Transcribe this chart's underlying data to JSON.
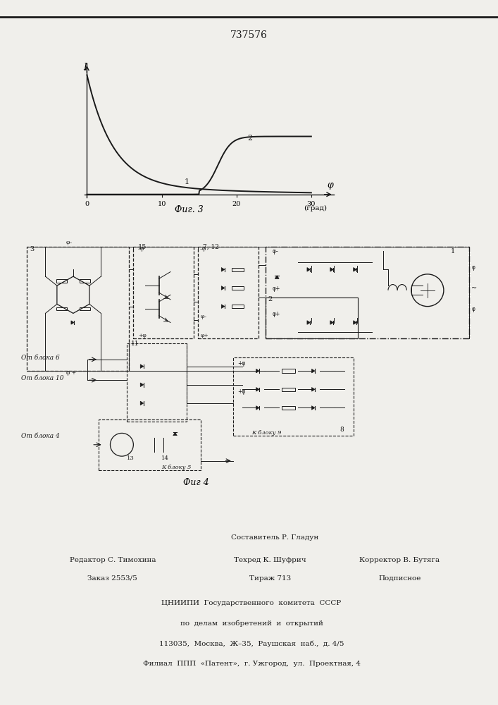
{
  "patent_number": "737576",
  "background_color": "#f0efeb",
  "fig3_label": "Фиг. 3",
  "fig4_label": "Фиг 4",
  "graph": {
    "xlabel": "φ",
    "xlabel_unit": "(град)",
    "ylabel": "I",
    "xticks": [
      0,
      10,
      20,
      30
    ],
    "curve1_color": "#1a1a1a",
    "curve2_color": "#1a1a1a"
  },
  "footer": {
    "line_compiler": "Составитель Р. Гладун",
    "line_editor": "Редактор С. Тимохина",
    "line_techred": "Техред К. Шуфрич",
    "line_corrector": "Корректор В. Бутяга",
    "line_order": "Заказ 2553/5",
    "line_tirazh": "Тираж 713",
    "line_podpisnoe": "Подписное",
    "line_org1": "ЦНИИПИ  Государственного  комитета  СССР",
    "line_org2": "по  делам  изобретений  и  открытий",
    "line_addr1": "113035,  Москва,  Ж–35,  Раушская  наб.,  д. 4/5",
    "line_addr2": "Филиал  ППП  «Патент»,  г. Ужгород,  ул.  Проектная, 4"
  }
}
